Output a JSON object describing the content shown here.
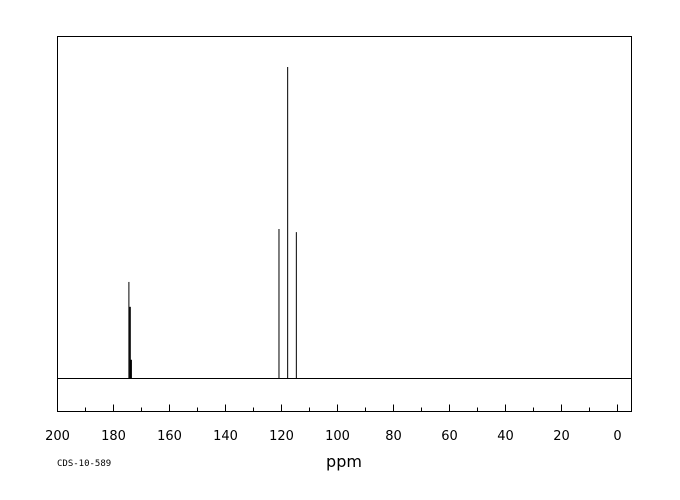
{
  "chart_data": {
    "type": "line",
    "xlabel": "ppm",
    "xlim": [
      200,
      -5
    ],
    "x_reversed": true,
    "xticks": [
      200,
      180,
      160,
      140,
      120,
      100,
      80,
      60,
      40,
      20,
      0
    ],
    "ylim": [
      0,
      100
    ],
    "grid": false,
    "footer_label": "CDS-10-589",
    "peaks": [
      {
        "x": 174.5,
        "y": 31
      },
      {
        "x": 174.2,
        "y": 23
      },
      {
        "x": 174.0,
        "y": 23
      },
      {
        "x": 173.8,
        "y": 6
      },
      {
        "x": 173.6,
        "y": 6
      },
      {
        "x": 120.9,
        "y": 48
      },
      {
        "x": 117.8,
        "y": 100
      },
      {
        "x": 114.7,
        "y": 47
      }
    ]
  }
}
